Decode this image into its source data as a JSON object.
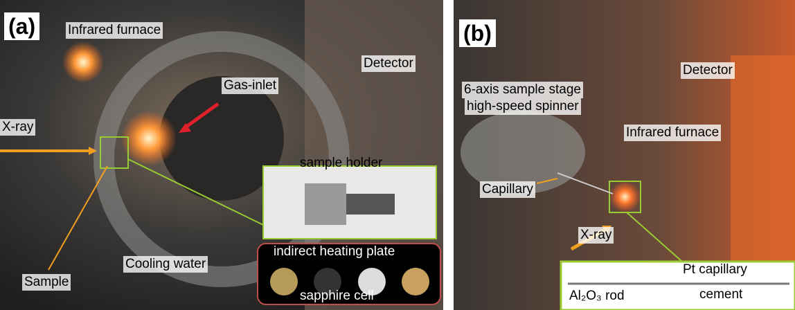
{
  "panels": [
    {
      "label": "(a)",
      "annotations": [
        "Infrared furnace",
        "Detector",
        "Gas-inlet",
        "X-ray",
        "sample holder",
        "indirect heating plate",
        "sapphire cell",
        "Cooling water",
        "Sample"
      ]
    },
    {
      "label": "(b)",
      "annotations": [
        "Detector",
        "6-axis sample stage",
        "high-speed spinner",
        "Infrared furnace",
        "Capillary",
        "X-ray",
        "Pt capillary",
        "cement",
        "Al₂O₃ rod"
      ]
    }
  ]
}
